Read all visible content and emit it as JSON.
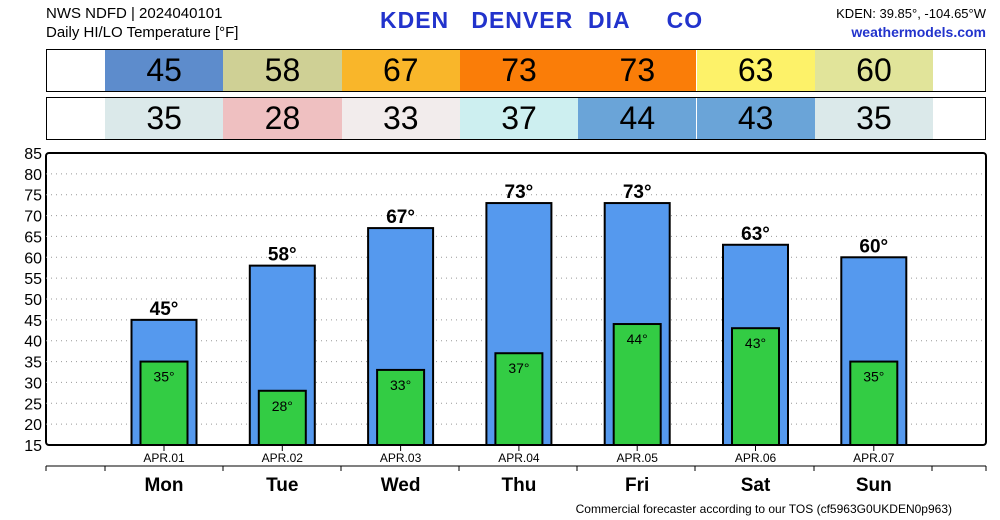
{
  "header": {
    "line1": "NWS NDFD | 2024040101",
    "line2": "Daily HI/LO Temperature [°F]",
    "station": "KDEN   DENVER  DIA     CO",
    "coords": "KDEN: 39.85°, -104.65°W",
    "site": "weathermodels.com"
  },
  "footer": "Commercial forecaster according to our TOS (cf5963G0UKDEN0p963)",
  "hi_strip": [
    {
      "value": "45",
      "color": "#5d8ccc"
    },
    {
      "value": "58",
      "color": "#cfd095"
    },
    {
      "value": "67",
      "color": "#f9b62a"
    },
    {
      "value": "73",
      "color": "#fa7d08"
    },
    {
      "value": "73",
      "color": "#fa7d08"
    },
    {
      "value": "63",
      "color": "#fdf269"
    },
    {
      "value": "60",
      "color": "#e1e49a"
    }
  ],
  "lo_strip": [
    {
      "value": "35",
      "color": "#dbe9ea"
    },
    {
      "value": "28",
      "color": "#efc0c1"
    },
    {
      "value": "33",
      "color": "#f2ecec"
    },
    {
      "value": "37",
      "color": "#cdeff0"
    },
    {
      "value": "44",
      "color": "#6aa4d8"
    },
    {
      "value": "43",
      "color": "#6aa4d8"
    },
    {
      "value": "35",
      "color": "#dbe9ea"
    }
  ],
  "chart_data": {
    "type": "bar",
    "categories": [
      "Mon",
      "Tue",
      "Wed",
      "Thu",
      "Fri",
      "Sat",
      "Sun"
    ],
    "dates": [
      "APR.01",
      "APR.02",
      "APR.03",
      "APR.04",
      "APR.05",
      "APR.06",
      "APR.07"
    ],
    "series": [
      {
        "name": "HI",
        "values": [
          45,
          58,
          67,
          73,
          73,
          63,
          60
        ],
        "color": "#5599ee"
      },
      {
        "name": "LO",
        "values": [
          35,
          28,
          33,
          37,
          44,
          43,
          35
        ],
        "color": "#33cc44"
      }
    ],
    "hi_labels": [
      "45°",
      "58°",
      "67°",
      "73°",
      "73°",
      "63°",
      "60°"
    ],
    "lo_labels": [
      "35°",
      "28°",
      "33°",
      "37°",
      "44°",
      "43°",
      "35°"
    ],
    "yticks": [
      15,
      20,
      25,
      30,
      35,
      40,
      45,
      50,
      55,
      60,
      65,
      70,
      75,
      80,
      85
    ],
    "ylim": [
      15,
      85
    ],
    "grid": true
  }
}
